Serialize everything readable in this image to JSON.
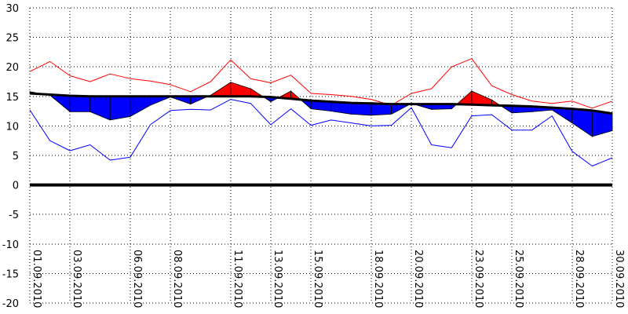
{
  "chart_data": {
    "type": "line",
    "title": "",
    "xlabel": "",
    "ylabel": "",
    "ylim": [
      -20,
      30
    ],
    "grid": true,
    "y_ticks": [
      30,
      25,
      20,
      15,
      10,
      5,
      0,
      -5,
      -10,
      -15,
      -20
    ],
    "x_tick_labels": [
      {
        "day": 1,
        "label": "01.09.2010"
      },
      {
        "day": 3,
        "label": "03.09.2010"
      },
      {
        "day": 6,
        "label": "06.09.2010"
      },
      {
        "day": 8,
        "label": "08.09.2010"
      },
      {
        "day": 11,
        "label": "11.09.2010"
      },
      {
        "day": 13,
        "label": "13.09.2010"
      },
      {
        "day": 15,
        "label": "15.09.2010"
      },
      {
        "day": 18,
        "label": "18.09.2010"
      },
      {
        "day": 20,
        "label": "20.09.2010"
      },
      {
        "day": 23,
        "label": "23.09.2010"
      },
      {
        "day": 25,
        "label": "25.09.2010"
      },
      {
        "day": 28,
        "label": "28.09.2010"
      },
      {
        "day": 30,
        "label": "30.09.2010"
      }
    ],
    "x": [
      1,
      2,
      3,
      4,
      5,
      6,
      7,
      8,
      9,
      10,
      11,
      12,
      13,
      14,
      15,
      16,
      17,
      18,
      19,
      20,
      21,
      22,
      23,
      24,
      25,
      26,
      27,
      28,
      29,
      30
    ],
    "series": [
      {
        "role": "max",
        "color": "#ff0000",
        "values": [
          19.2,
          20.9,
          18.5,
          17.5,
          18.8,
          18.0,
          17.6,
          17.0,
          15.8,
          17.5,
          21.2,
          18.0,
          17.3,
          18.6,
          15.5,
          15.3,
          15.0,
          14.5,
          13.5,
          15.5,
          16.3,
          20.0,
          21.4,
          16.8,
          15.3,
          14.2,
          13.8,
          14.2,
          13.0,
          14.2
        ]
      },
      {
        "role": "mean",
        "color": "#0000ff",
        "values": [
          15.8,
          15.2,
          12.4,
          12.4,
          11.0,
          11.6,
          13.5,
          14.9,
          13.7,
          15.2,
          17.4,
          16.3,
          14.1,
          15.9,
          12.9,
          12.5,
          12.0,
          11.8,
          12.0,
          13.8,
          12.8,
          12.9,
          15.9,
          14.4,
          12.2,
          12.4,
          12.7,
          10.5,
          8.2,
          9.2
        ]
      },
      {
        "role": "min",
        "color": "#0000ff",
        "values": [
          12.7,
          7.5,
          5.8,
          6.8,
          4.2,
          4.7,
          10.2,
          12.6,
          12.8,
          12.7,
          14.5,
          13.8,
          10.2,
          12.9,
          10.1,
          11.0,
          10.5,
          10.0,
          10.1,
          13.1,
          6.8,
          6.3,
          11.7,
          11.9,
          9.3,
          9.3,
          11.7,
          5.7,
          3.2,
          4.6
        ]
      },
      {
        "role": "norm",
        "color": "#000000",
        "values": [
          15.5,
          15.3,
          15.1,
          15.0,
          15.0,
          15.0,
          15.0,
          15.0,
          15.0,
          15.0,
          15.0,
          15.0,
          14.9,
          14.6,
          14.3,
          14.1,
          13.9,
          13.8,
          13.7,
          13.7,
          13.7,
          13.7,
          13.6,
          13.5,
          13.4,
          13.3,
          13.1,
          12.9,
          12.6,
          12.1
        ]
      }
    ],
    "fill_colors": {
      "above": "#ff0000",
      "below": "#0000ff"
    },
    "zero_line_color": "#000000"
  }
}
